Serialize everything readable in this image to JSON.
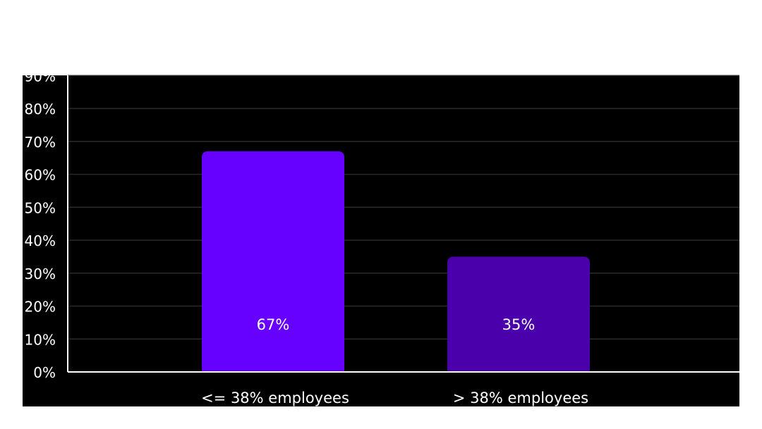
{
  "colors": {
    "page_bg": "#ffffff",
    "plot_bg": "#000000",
    "axis_line": "#ffffff",
    "grid_line": "#2a2a2a",
    "text": "#ffffff"
  },
  "chart_data": {
    "type": "bar",
    "title": "",
    "xlabel": "",
    "ylabel": "",
    "categories": [
      "<= 38% employees",
      "> 38% employees"
    ],
    "values": [
      67,
      35
    ],
    "value_labels": [
      "67%",
      "35%"
    ],
    "bar_colors": [
      "#6600ff",
      "#4a00aa"
    ],
    "y_ticks": [
      0,
      10,
      20,
      30,
      40,
      50,
      60,
      70,
      80,
      90
    ],
    "y_tick_labels": [
      "0%",
      "10%",
      "20%",
      "30%",
      "40%",
      "50%",
      "60%",
      "70%",
      "80%",
      "90%"
    ],
    "ylim": [
      0,
      90
    ],
    "grid": true,
    "legend": "none"
  }
}
